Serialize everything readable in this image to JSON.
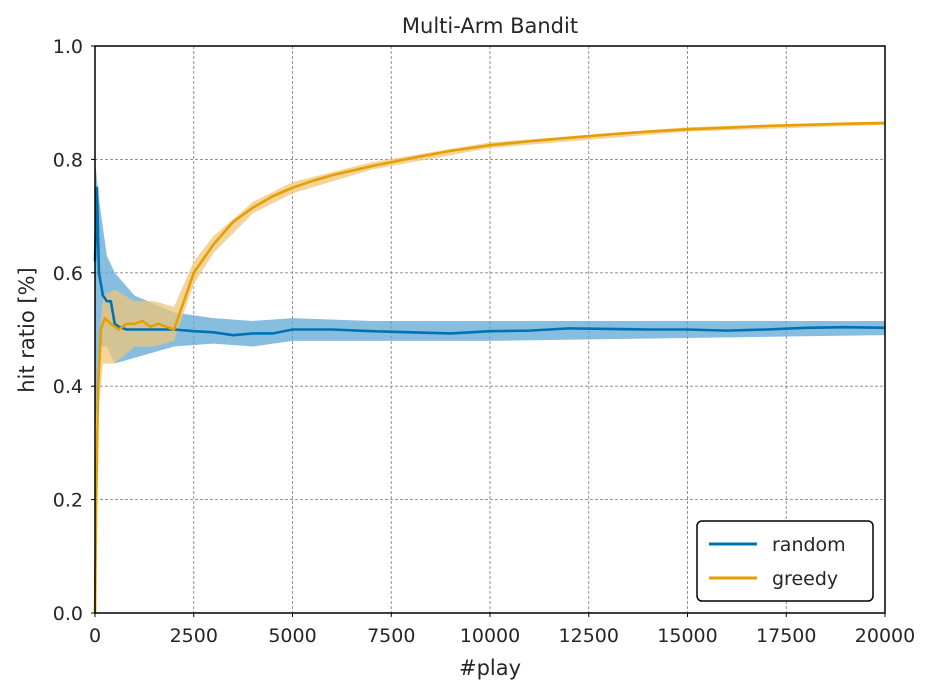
{
  "chart_data": {
    "type": "line",
    "title": "Multi-Arm Bandit",
    "xlabel": "#play",
    "ylabel": "hit ratio [%]",
    "xlim": [
      0,
      20000
    ],
    "ylim": [
      0.0,
      1.0
    ],
    "xticks": [
      0,
      2500,
      5000,
      7500,
      10000,
      12500,
      15000,
      17500,
      20000
    ],
    "xtick_labels": [
      "0",
      "2500",
      "5000",
      "7500",
      "10000",
      "12500",
      "15000",
      "17500",
      "20000"
    ],
    "yticks": [
      0.0,
      0.2,
      0.4,
      0.6,
      0.8,
      1.0
    ],
    "ytick_labels": [
      "0.0",
      "0.2",
      "0.4",
      "0.6",
      "0.8",
      "1.0"
    ],
    "grid": true,
    "legend_position": "lower-right",
    "series": [
      {
        "name": "random",
        "color": "#0072B2",
        "band_color": "#5fa8d6",
        "points": [
          [
            0,
            0.62
          ],
          [
            50,
            0.75
          ],
          [
            100,
            0.6
          ],
          [
            200,
            0.56
          ],
          [
            300,
            0.55
          ],
          [
            400,
            0.55
          ],
          [
            500,
            0.51
          ],
          [
            600,
            0.505
          ],
          [
            800,
            0.5
          ],
          [
            1000,
            0.5
          ],
          [
            1500,
            0.5
          ],
          [
            2000,
            0.5
          ],
          [
            2500,
            0.497
          ],
          [
            3000,
            0.495
          ],
          [
            3500,
            0.49
          ],
          [
            4000,
            0.493
          ],
          [
            4500,
            0.493
          ],
          [
            5000,
            0.5
          ],
          [
            6000,
            0.5
          ],
          [
            7000,
            0.497
          ],
          [
            8000,
            0.495
          ],
          [
            9000,
            0.493
          ],
          [
            10000,
            0.497
          ],
          [
            11000,
            0.498
          ],
          [
            12000,
            0.502
          ],
          [
            13000,
            0.501
          ],
          [
            14000,
            0.5
          ],
          [
            15000,
            0.5
          ],
          [
            16000,
            0.498
          ],
          [
            17000,
            0.5
          ],
          [
            18000,
            0.503
          ],
          [
            19000,
            0.504
          ],
          [
            20000,
            0.503
          ]
        ],
        "band": [
          [
            0,
            0.3,
            0.8
          ],
          [
            100,
            0.47,
            0.73
          ],
          [
            300,
            0.47,
            0.63
          ],
          [
            500,
            0.44,
            0.6
          ],
          [
            1000,
            0.45,
            0.56
          ],
          [
            2000,
            0.47,
            0.53
          ],
          [
            3000,
            0.475,
            0.52
          ],
          [
            4000,
            0.47,
            0.515
          ],
          [
            5000,
            0.48,
            0.52
          ],
          [
            7000,
            0.48,
            0.515
          ],
          [
            10000,
            0.48,
            0.515
          ],
          [
            15000,
            0.485,
            0.515
          ],
          [
            20000,
            0.49,
            0.515
          ]
        ]
      },
      {
        "name": "greedy",
        "color": "#E69F00",
        "band_color": "#efc67a",
        "points": [
          [
            0,
            0.0
          ],
          [
            30,
            0.2
          ],
          [
            80,
            0.4
          ],
          [
            150,
            0.5
          ],
          [
            250,
            0.52
          ],
          [
            400,
            0.51
          ],
          [
            600,
            0.5
          ],
          [
            800,
            0.51
          ],
          [
            1000,
            0.51
          ],
          [
            1200,
            0.515
          ],
          [
            1400,
            0.505
          ],
          [
            1600,
            0.51
          ],
          [
            1800,
            0.505
          ],
          [
            2000,
            0.5
          ],
          [
            2100,
            0.52
          ],
          [
            2300,
            0.56
          ],
          [
            2500,
            0.6
          ],
          [
            3000,
            0.65
          ],
          [
            3500,
            0.69
          ],
          [
            4000,
            0.715
          ],
          [
            4500,
            0.735
          ],
          [
            5000,
            0.75
          ],
          [
            5500,
            0.762
          ],
          [
            6000,
            0.772
          ],
          [
            7000,
            0.788
          ],
          [
            8000,
            0.802
          ],
          [
            9000,
            0.815
          ],
          [
            10000,
            0.825
          ],
          [
            11000,
            0.832
          ],
          [
            12000,
            0.838
          ],
          [
            13000,
            0.844
          ],
          [
            14000,
            0.849
          ],
          [
            15000,
            0.853
          ],
          [
            16000,
            0.856
          ],
          [
            17000,
            0.859
          ],
          [
            18000,
            0.861
          ],
          [
            19000,
            0.863
          ],
          [
            20000,
            0.864
          ]
        ],
        "band": [
          [
            0,
            0.0,
            0.0
          ],
          [
            80,
            0.35,
            0.45
          ],
          [
            200,
            0.44,
            0.56
          ],
          [
            500,
            0.44,
            0.57
          ],
          [
            1000,
            0.47,
            0.55
          ],
          [
            1500,
            0.47,
            0.55
          ],
          [
            2000,
            0.48,
            0.54
          ],
          [
            2500,
            0.58,
            0.62
          ],
          [
            3000,
            0.635,
            0.665
          ],
          [
            4000,
            0.705,
            0.725
          ],
          [
            5000,
            0.74,
            0.76
          ],
          [
            7000,
            0.782,
            0.795
          ],
          [
            10000,
            0.82,
            0.83
          ],
          [
            15000,
            0.849,
            0.857
          ],
          [
            20000,
            0.861,
            0.867
          ]
        ]
      }
    ]
  }
}
